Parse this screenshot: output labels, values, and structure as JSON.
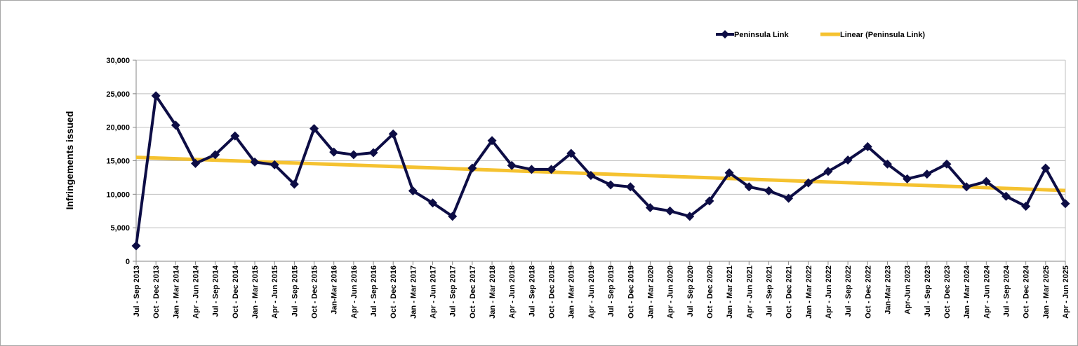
{
  "chart_data": {
    "type": "line",
    "title": "",
    "xlabel": "",
    "ylabel": "Infringements issued",
    "ylim": [
      0,
      30000
    ],
    "yticks": [
      0,
      5000,
      10000,
      15000,
      20000,
      25000,
      30000
    ],
    "ytick_labels": [
      "0",
      "5,000",
      "10,000",
      "15,000",
      "20,000",
      "25,000",
      "30,000"
    ],
    "grid": true,
    "legend_position": "top-right",
    "categories": [
      "Jul - Sep 2013",
      "Oct - Dec 2013",
      "Jan - Mar 2014",
      "Apr - Jun 2014",
      "Jul - Sep 2014",
      "Oct - Dec 2014",
      "Jan - Mar 2015",
      "Apr - Jun 2015",
      "Jul - Sep 2015",
      "Oct - Dec 2015",
      "Jan-Mar 2016",
      "Apr - Jun 2016",
      "Jul - Sep 2016",
      "Oct - Dec 2016",
      "Jan - Mar 2017",
      "Apr - Jun 2017",
      "Jul - Sep 2017",
      "Oct - Dec 2017",
      "Jan - Mar 2018",
      "Apr - Jun 2018",
      "Jul - Sep 2018",
      "Oct - Dec 2018",
      "Jan - Mar 2019",
      "Apr - Jun 2019",
      "Jul - Sep 2019",
      "Oct - Dec 2019",
      "Jan - Mar 2020",
      "Apr - Jun 2020",
      "Jul - Sep 2020",
      "Oct - Dec 2020",
      "Jan - Mar 2021",
      "Apr - Jun 2021",
      "Jul - Sep 2021",
      "Oct - Dec 2021",
      "Jan - Mar 2022",
      "Apr - Jun 2022",
      "Jul - Sep 2022",
      "Oct - Dec 2022",
      "Jan-Mar 2023",
      "Apr-Jun 2023",
      "Jul - Sep 2023",
      "Oct - Dec 2023",
      "Jan - Mar 2024",
      "Apr - Jun 2024",
      "Jul - Sep 2024",
      "Oct - Dec 2024",
      "Jan - Mar 2025",
      "Apr - Jun 2025"
    ],
    "series": [
      {
        "name": "Peninsula Link",
        "color": "#0d0d45",
        "marker": "diamond",
        "values": [
          2300,
          24700,
          20300,
          14600,
          15900,
          18700,
          14800,
          14400,
          11500,
          19800,
          16300,
          15900,
          16200,
          19000,
          10500,
          8700,
          6700,
          13900,
          18000,
          14300,
          13700,
          13700,
          16100,
          12800,
          11400,
          11100,
          8000,
          7500,
          6700,
          9000,
          13200,
          11100,
          10500,
          9400,
          11700,
          13400,
          15100,
          17100,
          14500,
          12300,
          13000,
          14500,
          11100,
          11900,
          9700,
          8200,
          13900,
          8600
        ]
      },
      {
        "name": "Linear (Peninsula Link)",
        "color": "#f5c230",
        "type": "linear-trendline"
      }
    ]
  }
}
